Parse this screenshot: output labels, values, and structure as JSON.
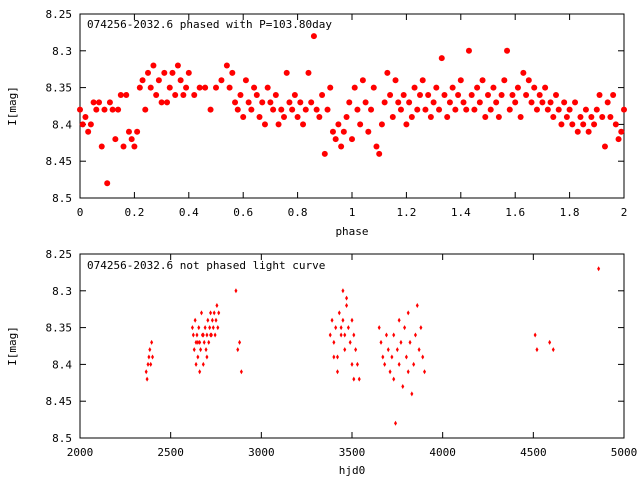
{
  "chart_data": [
    {
      "type": "scatter",
      "title": "074256-2032.6 phased with P=103.80day",
      "xlabel": "phase",
      "ylabel": "I[mag]",
      "xlim": [
        0,
        2
      ],
      "ylim": [
        8.5,
        8.25
      ],
      "y_axis_inverted": true,
      "marker": "filled-circle",
      "color": "#ff0000",
      "grid": false,
      "xticks": [
        "0",
        "0.2",
        "0.4",
        "0.6",
        "0.8",
        "1",
        "1.2",
        "1.4",
        "1.6",
        "1.8",
        "2"
      ],
      "yticks": [
        "8.25",
        "8.3",
        "8.35",
        "8.4",
        "8.45",
        "8.5"
      ],
      "points": [
        [
          0.0,
          8.38
        ],
        [
          0.01,
          8.4
        ],
        [
          0.02,
          8.39
        ],
        [
          0.03,
          8.41
        ],
        [
          0.04,
          8.4
        ],
        [
          0.05,
          8.37
        ],
        [
          0.06,
          8.38
        ],
        [
          0.07,
          8.37
        ],
        [
          0.08,
          8.43
        ],
        [
          0.09,
          8.38
        ],
        [
          0.1,
          8.48
        ],
        [
          0.11,
          8.37
        ],
        [
          0.12,
          8.38
        ],
        [
          0.13,
          8.42
        ],
        [
          0.14,
          8.38
        ],
        [
          0.15,
          8.36
        ],
        [
          0.16,
          8.43
        ],
        [
          0.17,
          8.36
        ],
        [
          0.18,
          8.41
        ],
        [
          0.19,
          8.42
        ],
        [
          0.2,
          8.43
        ],
        [
          0.21,
          8.41
        ],
        [
          0.22,
          8.35
        ],
        [
          0.23,
          8.34
        ],
        [
          0.24,
          8.38
        ],
        [
          0.25,
          8.33
        ],
        [
          0.26,
          8.35
        ],
        [
          0.27,
          8.32
        ],
        [
          0.28,
          8.36
        ],
        [
          0.29,
          8.34
        ],
        [
          0.3,
          8.37
        ],
        [
          0.31,
          8.33
        ],
        [
          0.32,
          8.37
        ],
        [
          0.33,
          8.35
        ],
        [
          0.34,
          8.33
        ],
        [
          0.35,
          8.36
        ],
        [
          0.36,
          8.32
        ],
        [
          0.37,
          8.34
        ],
        [
          0.38,
          8.36
        ],
        [
          0.39,
          8.35
        ],
        [
          0.4,
          8.33
        ],
        [
          0.42,
          8.36
        ],
        [
          0.44,
          8.35
        ],
        [
          0.46,
          8.35
        ],
        [
          0.48,
          8.38
        ],
        [
          0.5,
          8.35
        ],
        [
          0.52,
          8.34
        ],
        [
          0.54,
          8.32
        ],
        [
          0.55,
          8.35
        ],
        [
          0.56,
          8.33
        ],
        [
          0.57,
          8.37
        ],
        [
          0.58,
          8.38
        ],
        [
          0.59,
          8.36
        ],
        [
          0.6,
          8.39
        ],
        [
          0.61,
          8.34
        ],
        [
          0.62,
          8.37
        ],
        [
          0.63,
          8.38
        ],
        [
          0.64,
          8.35
        ],
        [
          0.65,
          8.36
        ],
        [
          0.66,
          8.39
        ],
        [
          0.67,
          8.37
        ],
        [
          0.68,
          8.4
        ],
        [
          0.69,
          8.35
        ],
        [
          0.7,
          8.37
        ],
        [
          0.71,
          8.38
        ],
        [
          0.72,
          8.36
        ],
        [
          0.73,
          8.4
        ],
        [
          0.74,
          8.38
        ],
        [
          0.75,
          8.39
        ],
        [
          0.76,
          8.33
        ],
        [
          0.77,
          8.37
        ],
        [
          0.78,
          8.38
        ],
        [
          0.79,
          8.36
        ],
        [
          0.8,
          8.39
        ],
        [
          0.81,
          8.37
        ],
        [
          0.82,
          8.4
        ],
        [
          0.83,
          8.38
        ],
        [
          0.84,
          8.33
        ],
        [
          0.85,
          8.37
        ],
        [
          0.86,
          8.28
        ],
        [
          0.87,
          8.38
        ],
        [
          0.88,
          8.39
        ],
        [
          0.89,
          8.36
        ],
        [
          0.9,
          8.44
        ],
        [
          0.91,
          8.38
        ],
        [
          0.92,
          8.35
        ],
        [
          0.93,
          8.41
        ],
        [
          0.94,
          8.42
        ],
        [
          0.95,
          8.4
        ],
        [
          0.96,
          8.43
        ],
        [
          0.97,
          8.41
        ],
        [
          0.98,
          8.39
        ],
        [
          0.99,
          8.37
        ],
        [
          1.0,
          8.42
        ],
        [
          1.01,
          8.35
        ],
        [
          1.02,
          8.38
        ],
        [
          1.03,
          8.4
        ],
        [
          1.04,
          8.34
        ],
        [
          1.05,
          8.37
        ],
        [
          1.06,
          8.41
        ],
        [
          1.07,
          8.38
        ],
        [
          1.08,
          8.35
        ],
        [
          1.09,
          8.43
        ],
        [
          1.1,
          8.44
        ],
        [
          1.11,
          8.4
        ],
        [
          1.12,
          8.37
        ],
        [
          1.13,
          8.33
        ],
        [
          1.14,
          8.36
        ],
        [
          1.15,
          8.39
        ],
        [
          1.16,
          8.34
        ],
        [
          1.17,
          8.37
        ],
        [
          1.18,
          8.38
        ],
        [
          1.19,
          8.36
        ],
        [
          1.2,
          8.4
        ],
        [
          1.21,
          8.37
        ],
        [
          1.22,
          8.39
        ],
        [
          1.23,
          8.35
        ],
        [
          1.24,
          8.38
        ],
        [
          1.25,
          8.36
        ],
        [
          1.26,
          8.34
        ],
        [
          1.27,
          8.38
        ],
        [
          1.28,
          8.36
        ],
        [
          1.29,
          8.39
        ],
        [
          1.3,
          8.37
        ],
        [
          1.31,
          8.35
        ],
        [
          1.32,
          8.38
        ],
        [
          1.33,
          8.31
        ],
        [
          1.34,
          8.36
        ],
        [
          1.35,
          8.39
        ],
        [
          1.36,
          8.37
        ],
        [
          1.37,
          8.35
        ],
        [
          1.38,
          8.38
        ],
        [
          1.39,
          8.36
        ],
        [
          1.4,
          8.34
        ],
        [
          1.41,
          8.37
        ],
        [
          1.42,
          8.38
        ],
        [
          1.43,
          8.3
        ],
        [
          1.44,
          8.36
        ],
        [
          1.45,
          8.38
        ],
        [
          1.46,
          8.35
        ],
        [
          1.47,
          8.37
        ],
        [
          1.48,
          8.34
        ],
        [
          1.49,
          8.39
        ],
        [
          1.5,
          8.36
        ],
        [
          1.51,
          8.38
        ],
        [
          1.52,
          8.35
        ],
        [
          1.53,
          8.37
        ],
        [
          1.54,
          8.39
        ],
        [
          1.55,
          8.36
        ],
        [
          1.56,
          8.34
        ],
        [
          1.57,
          8.3
        ],
        [
          1.58,
          8.38
        ],
        [
          1.59,
          8.36
        ],
        [
          1.6,
          8.37
        ],
        [
          1.61,
          8.35
        ],
        [
          1.62,
          8.39
        ],
        [
          1.63,
          8.33
        ],
        [
          1.64,
          8.36
        ],
        [
          1.65,
          8.34
        ],
        [
          1.66,
          8.37
        ],
        [
          1.67,
          8.35
        ],
        [
          1.68,
          8.38
        ],
        [
          1.69,
          8.36
        ],
        [
          1.7,
          8.37
        ],
        [
          1.71,
          8.35
        ],
        [
          1.72,
          8.38
        ],
        [
          1.73,
          8.37
        ],
        [
          1.74,
          8.39
        ],
        [
          1.75,
          8.36
        ],
        [
          1.76,
          8.38
        ],
        [
          1.77,
          8.4
        ],
        [
          1.78,
          8.37
        ],
        [
          1.79,
          8.39
        ],
        [
          1.8,
          8.38
        ],
        [
          1.81,
          8.4
        ],
        [
          1.82,
          8.37
        ],
        [
          1.83,
          8.41
        ],
        [
          1.84,
          8.39
        ],
        [
          1.85,
          8.4
        ],
        [
          1.86,
          8.38
        ],
        [
          1.87,
          8.41
        ],
        [
          1.88,
          8.39
        ],
        [
          1.89,
          8.4
        ],
        [
          1.9,
          8.38
        ],
        [
          1.91,
          8.36
        ],
        [
          1.92,
          8.39
        ],
        [
          1.93,
          8.43
        ],
        [
          1.94,
          8.37
        ],
        [
          1.95,
          8.39
        ],
        [
          1.96,
          8.36
        ],
        [
          1.97,
          8.4
        ],
        [
          1.98,
          8.42
        ],
        [
          1.99,
          8.41
        ],
        [
          2.0,
          8.38
        ]
      ]
    },
    {
      "type": "scatter",
      "title": "074256-2032.6 not phased light curve",
      "xlabel": "hjd0",
      "ylabel": "I[mag]",
      "xlim": [
        2000,
        5000
      ],
      "ylim": [
        8.5,
        8.25
      ],
      "y_axis_inverted": true,
      "marker": "small-diamond",
      "color": "#ff0000",
      "grid": false,
      "xticks": [
        "2000",
        "2500",
        "3000",
        "3500",
        "4000",
        "4500",
        "5000"
      ],
      "yticks": [
        "8.25",
        "8.3",
        "8.35",
        "8.4",
        "8.45",
        "8.5"
      ],
      "points": [
        [
          2365,
          8.41
        ],
        [
          2370,
          8.42
        ],
        [
          2375,
          8.4
        ],
        [
          2380,
          8.39
        ],
        [
          2385,
          8.38
        ],
        [
          2390,
          8.4
        ],
        [
          2395,
          8.37
        ],
        [
          2400,
          8.39
        ],
        [
          2620,
          8.35
        ],
        [
          2625,
          8.36
        ],
        [
          2630,
          8.38
        ],
        [
          2635,
          8.34
        ],
        [
          2640,
          8.37
        ],
        [
          2645,
          8.36
        ],
        [
          2650,
          8.39
        ],
        [
          2655,
          8.35
        ],
        [
          2660,
          8.37
        ],
        [
          2665,
          8.38
        ],
        [
          2670,
          8.33
        ],
        [
          2675,
          8.36
        ],
        [
          2680,
          8.4
        ],
        [
          2685,
          8.37
        ],
        [
          2690,
          8.35
        ],
        [
          2695,
          8.38
        ],
        [
          2700,
          8.36
        ],
        [
          2705,
          8.34
        ],
        [
          2710,
          8.37
        ],
        [
          2715,
          8.35
        ],
        [
          2720,
          8.33
        ],
        [
          2725,
          8.36
        ],
        [
          2730,
          8.34
        ],
        [
          2735,
          8.35
        ],
        [
          2740,
          8.33
        ],
        [
          2745,
          8.36
        ],
        [
          2750,
          8.34
        ],
        [
          2755,
          8.32
        ],
        [
          2760,
          8.35
        ],
        [
          2765,
          8.33
        ],
        [
          2640,
          8.4
        ],
        [
          2660,
          8.41
        ],
        [
          2700,
          8.39
        ],
        [
          2720,
          8.36
        ],
        [
          2680,
          8.36
        ],
        [
          2650,
          8.37
        ],
        [
          2860,
          8.3
        ],
        [
          2870,
          8.38
        ],
        [
          2880,
          8.37
        ],
        [
          2890,
          8.41
        ],
        [
          3380,
          8.36
        ],
        [
          3390,
          8.34
        ],
        [
          3400,
          8.37
        ],
        [
          3410,
          8.35
        ],
        [
          3420,
          8.39
        ],
        [
          3430,
          8.33
        ],
        [
          3440,
          8.36
        ],
        [
          3450,
          8.34
        ],
        [
          3460,
          8.38
        ],
        [
          3470,
          8.32
        ],
        [
          3480,
          8.35
        ],
        [
          3490,
          8.37
        ],
        [
          3500,
          8.34
        ],
        [
          3510,
          8.36
        ],
        [
          3520,
          8.38
        ],
        [
          3530,
          8.4
        ],
        [
          3540,
          8.42
        ],
        [
          3420,
          8.41
        ],
        [
          3450,
          8.3
        ],
        [
          3470,
          8.31
        ],
        [
          3460,
          8.36
        ],
        [
          3440,
          8.35
        ],
        [
          3400,
          8.39
        ],
        [
          3500,
          8.4
        ],
        [
          3510,
          8.42
        ],
        [
          3650,
          8.35
        ],
        [
          3660,
          8.37
        ],
        [
          3670,
          8.39
        ],
        [
          3680,
          8.4
        ],
        [
          3690,
          8.36
        ],
        [
          3700,
          8.38
        ],
        [
          3710,
          8.41
        ],
        [
          3720,
          8.39
        ],
        [
          3730,
          8.42
        ],
        [
          3740,
          8.48
        ],
        [
          3750,
          8.38
        ],
        [
          3760,
          8.4
        ],
        [
          3770,
          8.37
        ],
        [
          3780,
          8.43
        ],
        [
          3790,
          8.35
        ],
        [
          3800,
          8.39
        ],
        [
          3810,
          8.41
        ],
        [
          3820,
          8.37
        ],
        [
          3830,
          8.44
        ],
        [
          3840,
          8.4
        ],
        [
          3850,
          8.36
        ],
        [
          3860,
          8.32
        ],
        [
          3870,
          8.38
        ],
        [
          3880,
          8.35
        ],
        [
          3890,
          8.39
        ],
        [
          3900,
          8.41
        ],
        [
          3760,
          8.34
        ],
        [
          3810,
          8.33
        ],
        [
          3730,
          8.36
        ],
        [
          4510,
          8.36
        ],
        [
          4520,
          8.38
        ],
        [
          4590,
          8.37
        ],
        [
          4610,
          8.38
        ],
        [
          4860,
          8.27
        ]
      ]
    }
  ]
}
